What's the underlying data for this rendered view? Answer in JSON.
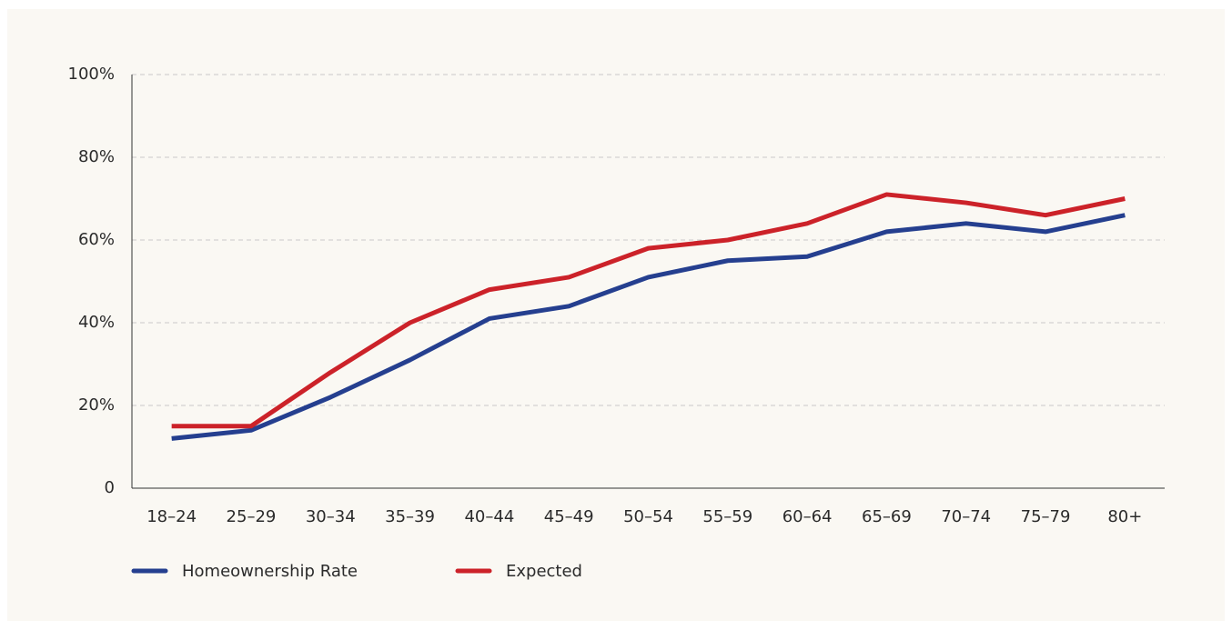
{
  "chart_data": {
    "type": "line",
    "categories": [
      "18–24",
      "25–29",
      "30–34",
      "35–39",
      "40–44",
      "45–49",
      "50–54",
      "55–59",
      "60–64",
      "65–69",
      "70–74",
      "75–79",
      "80+"
    ],
    "series": [
      {
        "name": "Homeownership Rate",
        "color": "#253f8f",
        "values": [
          12,
          14,
          22,
          31,
          41,
          44,
          51,
          55,
          56,
          62,
          64,
          62,
          66
        ]
      },
      {
        "name": "Expected",
        "color": "#cc2229",
        "values": [
          15,
          15,
          28,
          40,
          48,
          51,
          58,
          60,
          64,
          71,
          69,
          66,
          70
        ]
      }
    ],
    "ylim": [
      0,
      100
    ],
    "yticks": [
      0,
      {
        "value": 20,
        "label": "20%"
      },
      {
        "value": 40,
        "label": "40%"
      },
      {
        "value": 60,
        "label": "60%"
      },
      {
        "value": 80,
        "label": "80%"
      },
      {
        "value": 100,
        "label": "100%"
      }
    ],
    "grid": true
  }
}
